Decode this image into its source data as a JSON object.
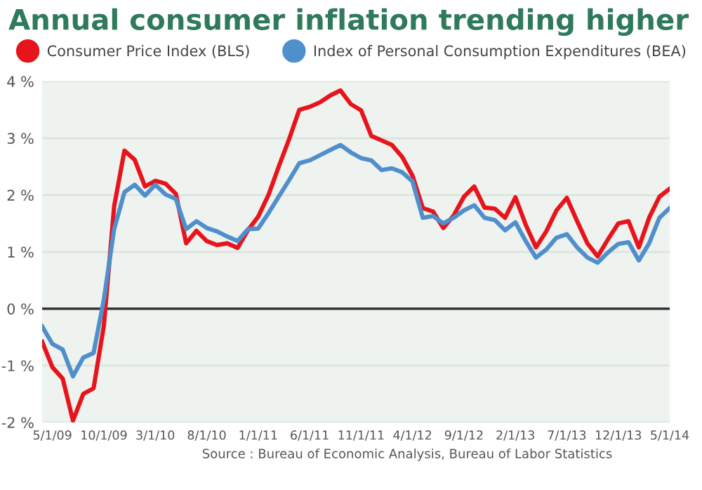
{
  "chart_data": {
    "type": "line",
    "title": "Annual consumer inflation trending higher",
    "categories": [
      null,
      "5/1/09",
      null,
      null,
      null,
      null,
      "10/1/09",
      null,
      null,
      null,
      null,
      "3/1/10",
      null,
      null,
      null,
      null,
      "8/1/10",
      null,
      null,
      null,
      null,
      "1/1/11",
      null,
      null,
      null,
      null,
      "6/1/11",
      null,
      null,
      null,
      null,
      "11/1/11",
      null,
      null,
      null,
      null,
      "4/1/12",
      null,
      null,
      null,
      null,
      "9/1/12",
      null,
      null,
      null,
      null,
      "2/1/13",
      null,
      null,
      null,
      null,
      "7/1/13",
      null,
      null,
      null,
      null,
      "12/1/13",
      null,
      null,
      null,
      null,
      "5/1/14"
    ],
    "series": [
      {
        "name": "Consumer Price Index (BLS)",
        "color": "#e8141b",
        "values": [
          -0.58,
          -1.03,
          -1.23,
          -1.97,
          -1.5,
          -1.4,
          -0.3,
          1.8,
          2.78,
          2.62,
          2.15,
          2.25,
          2.2,
          2.02,
          1.15,
          1.37,
          1.19,
          1.12,
          1.15,
          1.07,
          1.38,
          1.62,
          2.0,
          2.5,
          2.98,
          3.5,
          3.55,
          3.63,
          3.75,
          3.84,
          3.6,
          3.49,
          3.04,
          2.96,
          2.88,
          2.67,
          2.34,
          1.77,
          1.71,
          1.42,
          1.64,
          1.97,
          2.15,
          1.78,
          1.76,
          1.6,
          1.96,
          1.48,
          1.08,
          1.36,
          1.73,
          1.95,
          1.54,
          1.15,
          0.92,
          1.22,
          1.5,
          1.54,
          1.08,
          1.6,
          1.97,
          2.11
        ]
      },
      {
        "name": "Index of Personal Consumption Expenditures (BEA)",
        "color": "#4f8fcc",
        "values": [
          -0.31,
          -0.62,
          -0.72,
          -1.19,
          -0.86,
          -0.78,
          0.16,
          1.4,
          2.05,
          2.18,
          1.99,
          2.18,
          2.01,
          1.93,
          1.4,
          1.54,
          1.42,
          1.36,
          1.27,
          1.19,
          1.4,
          1.41,
          1.68,
          1.97,
          2.26,
          2.56,
          2.61,
          2.7,
          2.79,
          2.88,
          2.75,
          2.65,
          2.61,
          2.44,
          2.47,
          2.4,
          2.24,
          1.6,
          1.63,
          1.5,
          1.6,
          1.73,
          1.82,
          1.6,
          1.56,
          1.38,
          1.52,
          1.19,
          0.9,
          1.04,
          1.25,
          1.31,
          1.08,
          0.9,
          0.81,
          0.99,
          1.14,
          1.17,
          0.85,
          1.15,
          1.6,
          1.77
        ]
      }
    ],
    "ylim": [
      -2,
      4
    ],
    "yticks": [
      {
        "value": -2,
        "label": "-2 %"
      },
      {
        "value": -1,
        "label": "-1 %"
      },
      {
        "value": 0,
        "label": "0 %"
      },
      {
        "value": 1,
        "label": "1 %"
      },
      {
        "value": 2,
        "label": "2 %"
      },
      {
        "value": 3,
        "label": "3 %"
      },
      {
        "value": 4,
        "label": "4 %"
      }
    ],
    "ref_lines": [
      {
        "axis": "y",
        "value": 0,
        "color": "#333333"
      }
    ],
    "grid": "y",
    "legend": "top left",
    "line_style": "solid",
    "annotations": [
      "Source : Bureau of Economic Analysis, Bureau of Labor Statistics"
    ]
  }
}
